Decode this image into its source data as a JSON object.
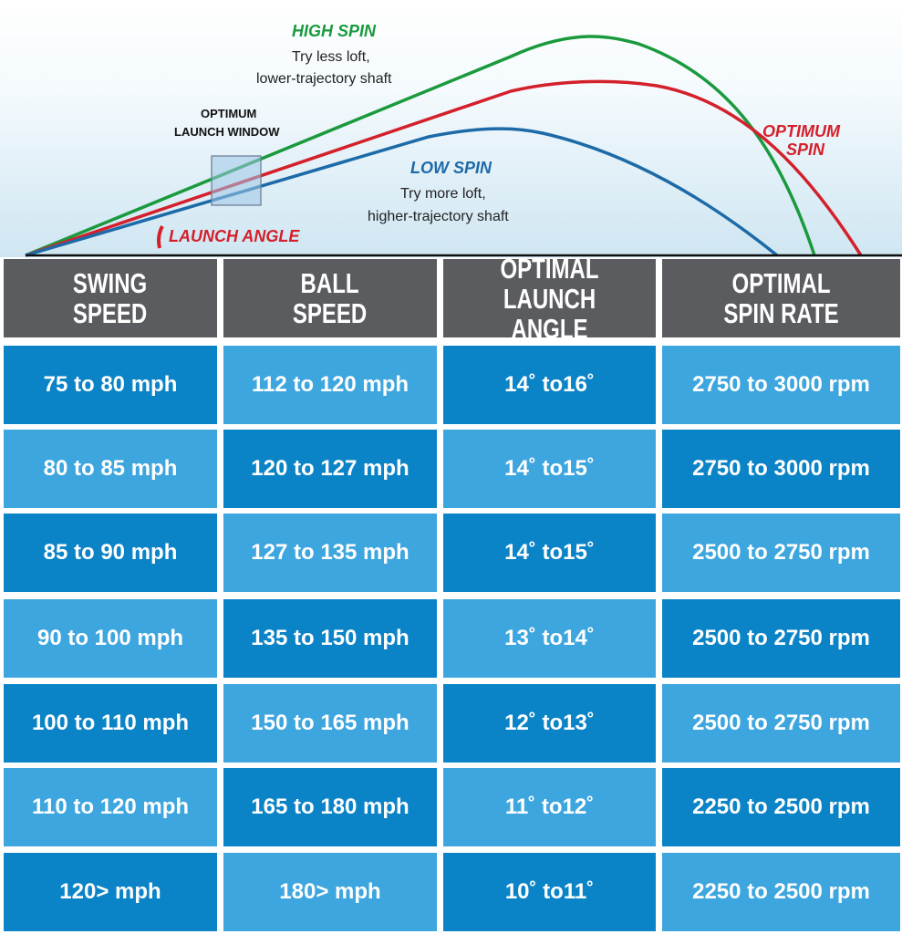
{
  "diagram": {
    "high_spin": {
      "title": "HIGH SPIN",
      "line1": "Try less loft,",
      "line2": "lower-trajectory shaft",
      "color": "#1a9a3d"
    },
    "low_spin": {
      "title": "LOW SPIN",
      "line1": "Try more loft,",
      "line2": "higher-trajectory shaft",
      "color": "#1d6aa8"
    },
    "optimum_spin": {
      "line1": "OPTIMUM",
      "line2": "SPIN",
      "color": "#d4202b"
    },
    "launch_window": {
      "line1": "OPTIMUM",
      "line2": "LAUNCH WINDOW"
    },
    "launch_angle": {
      "title": "LAUNCH ANGLE",
      "color": "#d4202b"
    }
  },
  "table": {
    "headers": [
      {
        "line1": "SWING",
        "line2": "SPEED"
      },
      {
        "line1": "BALL",
        "line2": "SPEED"
      },
      {
        "line1": "OPTIMAL",
        "line2": "LAUNCH ANGLE"
      },
      {
        "line1": "OPTIMAL",
        "line2": "SPIN RATE"
      }
    ],
    "rows": [
      [
        "75 to 80 mph",
        "112 to 120 mph",
        "14˚ to16˚",
        "2750 to 3000 rpm"
      ],
      [
        "80 to 85 mph",
        "120 to 127 mph",
        "14˚ to15˚",
        "2750 to 3000 rpm"
      ],
      [
        "85 to 90 mph",
        "127 to 135 mph",
        "14˚ to15˚",
        "2500 to 2750 rpm"
      ],
      [
        "90 to 100 mph",
        "135 to 150 mph",
        "13˚ to14˚",
        "2500 to 2750 rpm"
      ],
      [
        "100 to 110 mph",
        "150 to 165 mph",
        "12˚ to13˚",
        "2500 to 2750 rpm"
      ],
      [
        "110 to 120 mph",
        "165 to 180 mph",
        "11˚ to12˚",
        "2250 to 2500 rpm"
      ],
      [
        "120> mph",
        "180> mph",
        "10˚ to11˚",
        "2250 to 2500 rpm"
      ]
    ],
    "colors": {
      "header": "#5b5c60",
      "dark": "#0b84c7",
      "light": "#3ea6df"
    }
  },
  "chart_data": {
    "type": "table",
    "columns": [
      "SWING SPEED",
      "BALL SPEED",
      "OPTIMAL LAUNCH ANGLE",
      "OPTIMAL SPIN RATE"
    ],
    "rows": [
      [
        "75 to 80 mph",
        "112 to 120 mph",
        "14˚ to16˚",
        "2750 to 3000 rpm"
      ],
      [
        "80 to 85 mph",
        "120 to 127 mph",
        "14˚ to15˚",
        "2750 to 3000 rpm"
      ],
      [
        "85 to 90 mph",
        "127 to 135 mph",
        "14˚ to15˚",
        "2500 to 2750 rpm"
      ],
      [
        "90 to 100 mph",
        "135 to 150 mph",
        "13˚ to14˚",
        "2500 to 2750 rpm"
      ],
      [
        "100 to 110 mph",
        "150 to 165 mph",
        "12˚ to13˚",
        "2500 to 2750 rpm"
      ],
      [
        "110 to 120 mph",
        "165 to 180 mph",
        "11˚ to12˚",
        "2250 to 2500 rpm"
      ],
      [
        "120> mph",
        "180> mph",
        "10˚ to11˚",
        "2250 to 2500 rpm"
      ]
    ]
  }
}
